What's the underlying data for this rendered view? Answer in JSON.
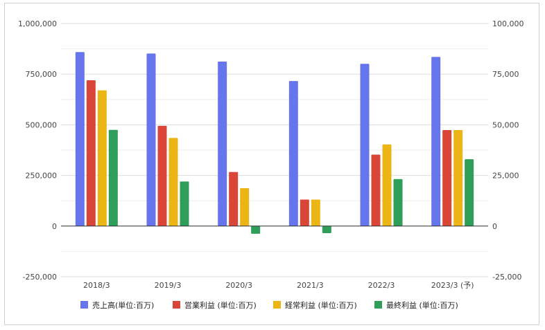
{
  "chart_data": {
    "type": "bar",
    "categories": [
      "2018/3",
      "2019/3",
      "2020/3",
      "2021/3",
      "2022/3",
      "2023/3 (予)"
    ],
    "series": [
      {
        "name": "売上高(単位:百万)",
        "axis": "left",
        "color": "#6675ec",
        "values": [
          859000,
          852000,
          812000,
          716000,
          801000,
          835000
        ]
      },
      {
        "name": "営業利益 (単位:百万)",
        "axis": "right",
        "color": "#d94637",
        "values": [
          72000,
          49500,
          26700,
          13100,
          35300,
          47400
        ]
      },
      {
        "name": "経常利益 (単位:百万)",
        "axis": "right",
        "color": "#eab515",
        "values": [
          67000,
          43500,
          18700,
          13100,
          40300,
          47400
        ]
      },
      {
        "name": "最終利益 (単位:百万)",
        "axis": "right",
        "color": "#2f9e59",
        "values": [
          47500,
          22000,
          -3800,
          -3500,
          23200,
          33000
        ]
      }
    ],
    "left_axis": {
      "ylim": [
        -250000,
        1000000
      ],
      "ticks": [
        "1,000,000",
        "750,000",
        "500,000",
        "250,000",
        "0",
        "-250,000"
      ]
    },
    "right_axis": {
      "ylim": [
        -25000,
        100000
      ],
      "ticks": [
        "100,000",
        "75,000",
        "50,000",
        "25,000",
        "0",
        "-25,000"
      ]
    },
    "grid": true,
    "legend_position": "bottom"
  }
}
